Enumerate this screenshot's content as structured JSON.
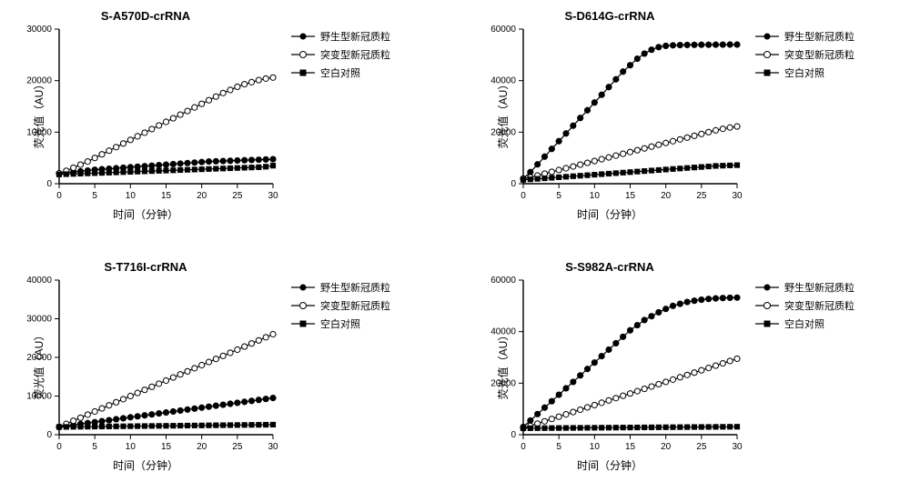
{
  "global": {
    "xlabel": "时间（分钟）",
    "ylabel": "荧光值（AU）",
    "legend": [
      {
        "label": "野生型新冠质粒",
        "marker": "circle-filled"
      },
      {
        "label": "突变型新冠质粒",
        "marker": "circle-open"
      },
      {
        "label": "空白对照",
        "marker": "square-filled"
      }
    ],
    "xlim": [
      0,
      30
    ],
    "xticks": [
      0,
      5,
      10,
      15,
      20,
      25,
      30
    ],
    "line_color": "#000000",
    "background_color": "#ffffff",
    "axis_color": "#000000",
    "tick_fontsize": 10,
    "label_fontsize": 12,
    "title_fontsize": 13,
    "marker_size": 4,
    "line_width": 1.2
  },
  "panels": [
    {
      "title": "S-A570D-crRNA",
      "ylim": [
        0,
        30000
      ],
      "ytick_step": 10000,
      "series": [
        {
          "marker": "circle-filled",
          "y": [
            2000,
            2150,
            2300,
            2400,
            2550,
            2700,
            2800,
            2900,
            3000,
            3100,
            3200,
            3300,
            3400,
            3500,
            3600,
            3700,
            3800,
            3900,
            4000,
            4100,
            4200,
            4300,
            4350,
            4400,
            4450,
            4500,
            4550,
            4600,
            4650,
            4700,
            4750
          ]
        },
        {
          "marker": "circle-open",
          "y": [
            2000,
            2500,
            3100,
            3700,
            4300,
            5000,
            5700,
            6400,
            7100,
            7800,
            8500,
            9200,
            9900,
            10600,
            11300,
            12000,
            12700,
            13400,
            14100,
            14800,
            15500,
            16200,
            16900,
            17600,
            18200,
            18800,
            19300,
            19700,
            20100,
            20400,
            20600
          ]
        },
        {
          "marker": "square-filled",
          "y": [
            1800,
            1850,
            1900,
            1950,
            2000,
            2050,
            2100,
            2150,
            2200,
            2250,
            2300,
            2350,
            2400,
            2450,
            2500,
            2550,
            2600,
            2650,
            2700,
            2750,
            2800,
            2850,
            2900,
            2950,
            3000,
            3050,
            3100,
            3150,
            3200,
            3300,
            3500
          ]
        }
      ]
    },
    {
      "title": "S-D614G-crRNA",
      "ylim": [
        0,
        60000
      ],
      "ytick_step": 20000,
      "series": [
        {
          "marker": "circle-filled",
          "y": [
            2000,
            4500,
            7500,
            10500,
            13500,
            16500,
            19500,
            22500,
            25500,
            28500,
            31500,
            34500,
            37500,
            40500,
            43500,
            46000,
            48500,
            50500,
            52000,
            53000,
            53500,
            53700,
            53800,
            53850,
            53900,
            53920,
            53940,
            53960,
            53980,
            54000,
            54000
          ]
        },
        {
          "marker": "circle-open",
          "y": [
            1800,
            2500,
            3200,
            3900,
            4600,
            5300,
            6000,
            6700,
            7400,
            8100,
            8800,
            9500,
            10200,
            10900,
            11600,
            12300,
            13000,
            13700,
            14400,
            15100,
            15800,
            16500,
            17200,
            17900,
            18600,
            19300,
            20000,
            20700,
            21300,
            21800,
            22200
          ]
        },
        {
          "marker": "square-filled",
          "y": [
            1500,
            1700,
            1900,
            2100,
            2300,
            2500,
            2700,
            2900,
            3100,
            3300,
            3500,
            3700,
            3900,
            4100,
            4300,
            4500,
            4700,
            4900,
            5100,
            5300,
            5500,
            5700,
            5900,
            6100,
            6300,
            6500,
            6700,
            6900,
            7000,
            7100,
            7200
          ]
        }
      ]
    },
    {
      "title": "S-T716I-crRNA",
      "ylim": [
        0,
        40000
      ],
      "ytick_step": 10000,
      "series": [
        {
          "marker": "circle-filled",
          "y": [
            2000,
            2250,
            2500,
            2750,
            3000,
            3250,
            3500,
            3750,
            4000,
            4250,
            4500,
            4750,
            5000,
            5250,
            5500,
            5750,
            6000,
            6250,
            6500,
            6750,
            7000,
            7250,
            7500,
            7750,
            8000,
            8250,
            8500,
            8750,
            9000,
            9250,
            9500
          ]
        },
        {
          "marker": "circle-open",
          "y": [
            2000,
            2800,
            3600,
            4400,
            5200,
            6000,
            6800,
            7600,
            8400,
            9200,
            10000,
            10800,
            11600,
            12400,
            13200,
            14000,
            14800,
            15600,
            16400,
            17200,
            18000,
            18800,
            19600,
            20400,
            21200,
            22000,
            22800,
            23600,
            24400,
            25200,
            26000
          ]
        },
        {
          "marker": "square-filled",
          "y": [
            2000,
            2020,
            2040,
            2060,
            2080,
            2100,
            2120,
            2140,
            2160,
            2180,
            2200,
            2220,
            2240,
            2260,
            2280,
            2300,
            2320,
            2340,
            2360,
            2380,
            2400,
            2420,
            2440,
            2460,
            2480,
            2500,
            2520,
            2540,
            2560,
            2580,
            2600
          ]
        }
      ]
    },
    {
      "title": "S-S982A-crRNA",
      "ylim": [
        0,
        60000
      ],
      "ytick_step": 20000,
      "series": [
        {
          "marker": "circle-filled",
          "y": [
            3000,
            5500,
            8000,
            10500,
            13000,
            15500,
            18000,
            20500,
            23000,
            25500,
            28000,
            30500,
            33000,
            35500,
            38000,
            40500,
            42500,
            44500,
            46000,
            47500,
            48800,
            50000,
            50800,
            51500,
            52000,
            52400,
            52700,
            52900,
            53050,
            53150,
            53200
          ]
        },
        {
          "marker": "circle-open",
          "y": [
            2500,
            3400,
            4300,
            5200,
            6100,
            7000,
            7900,
            8800,
            9700,
            10600,
            11500,
            12400,
            13300,
            14200,
            15100,
            16000,
            16900,
            17800,
            18700,
            19600,
            20500,
            21400,
            22300,
            23200,
            24100,
            25000,
            25900,
            26800,
            27700,
            28600,
            29500
          ]
        },
        {
          "marker": "square-filled",
          "y": [
            2500,
            2520,
            2540,
            2560,
            2580,
            2600,
            2620,
            2640,
            2660,
            2680,
            2700,
            2720,
            2740,
            2760,
            2780,
            2800,
            2820,
            2840,
            2860,
            2880,
            2900,
            2920,
            2940,
            2960,
            2980,
            3000,
            3020,
            3040,
            3060,
            3080,
            3100
          ]
        }
      ]
    }
  ]
}
